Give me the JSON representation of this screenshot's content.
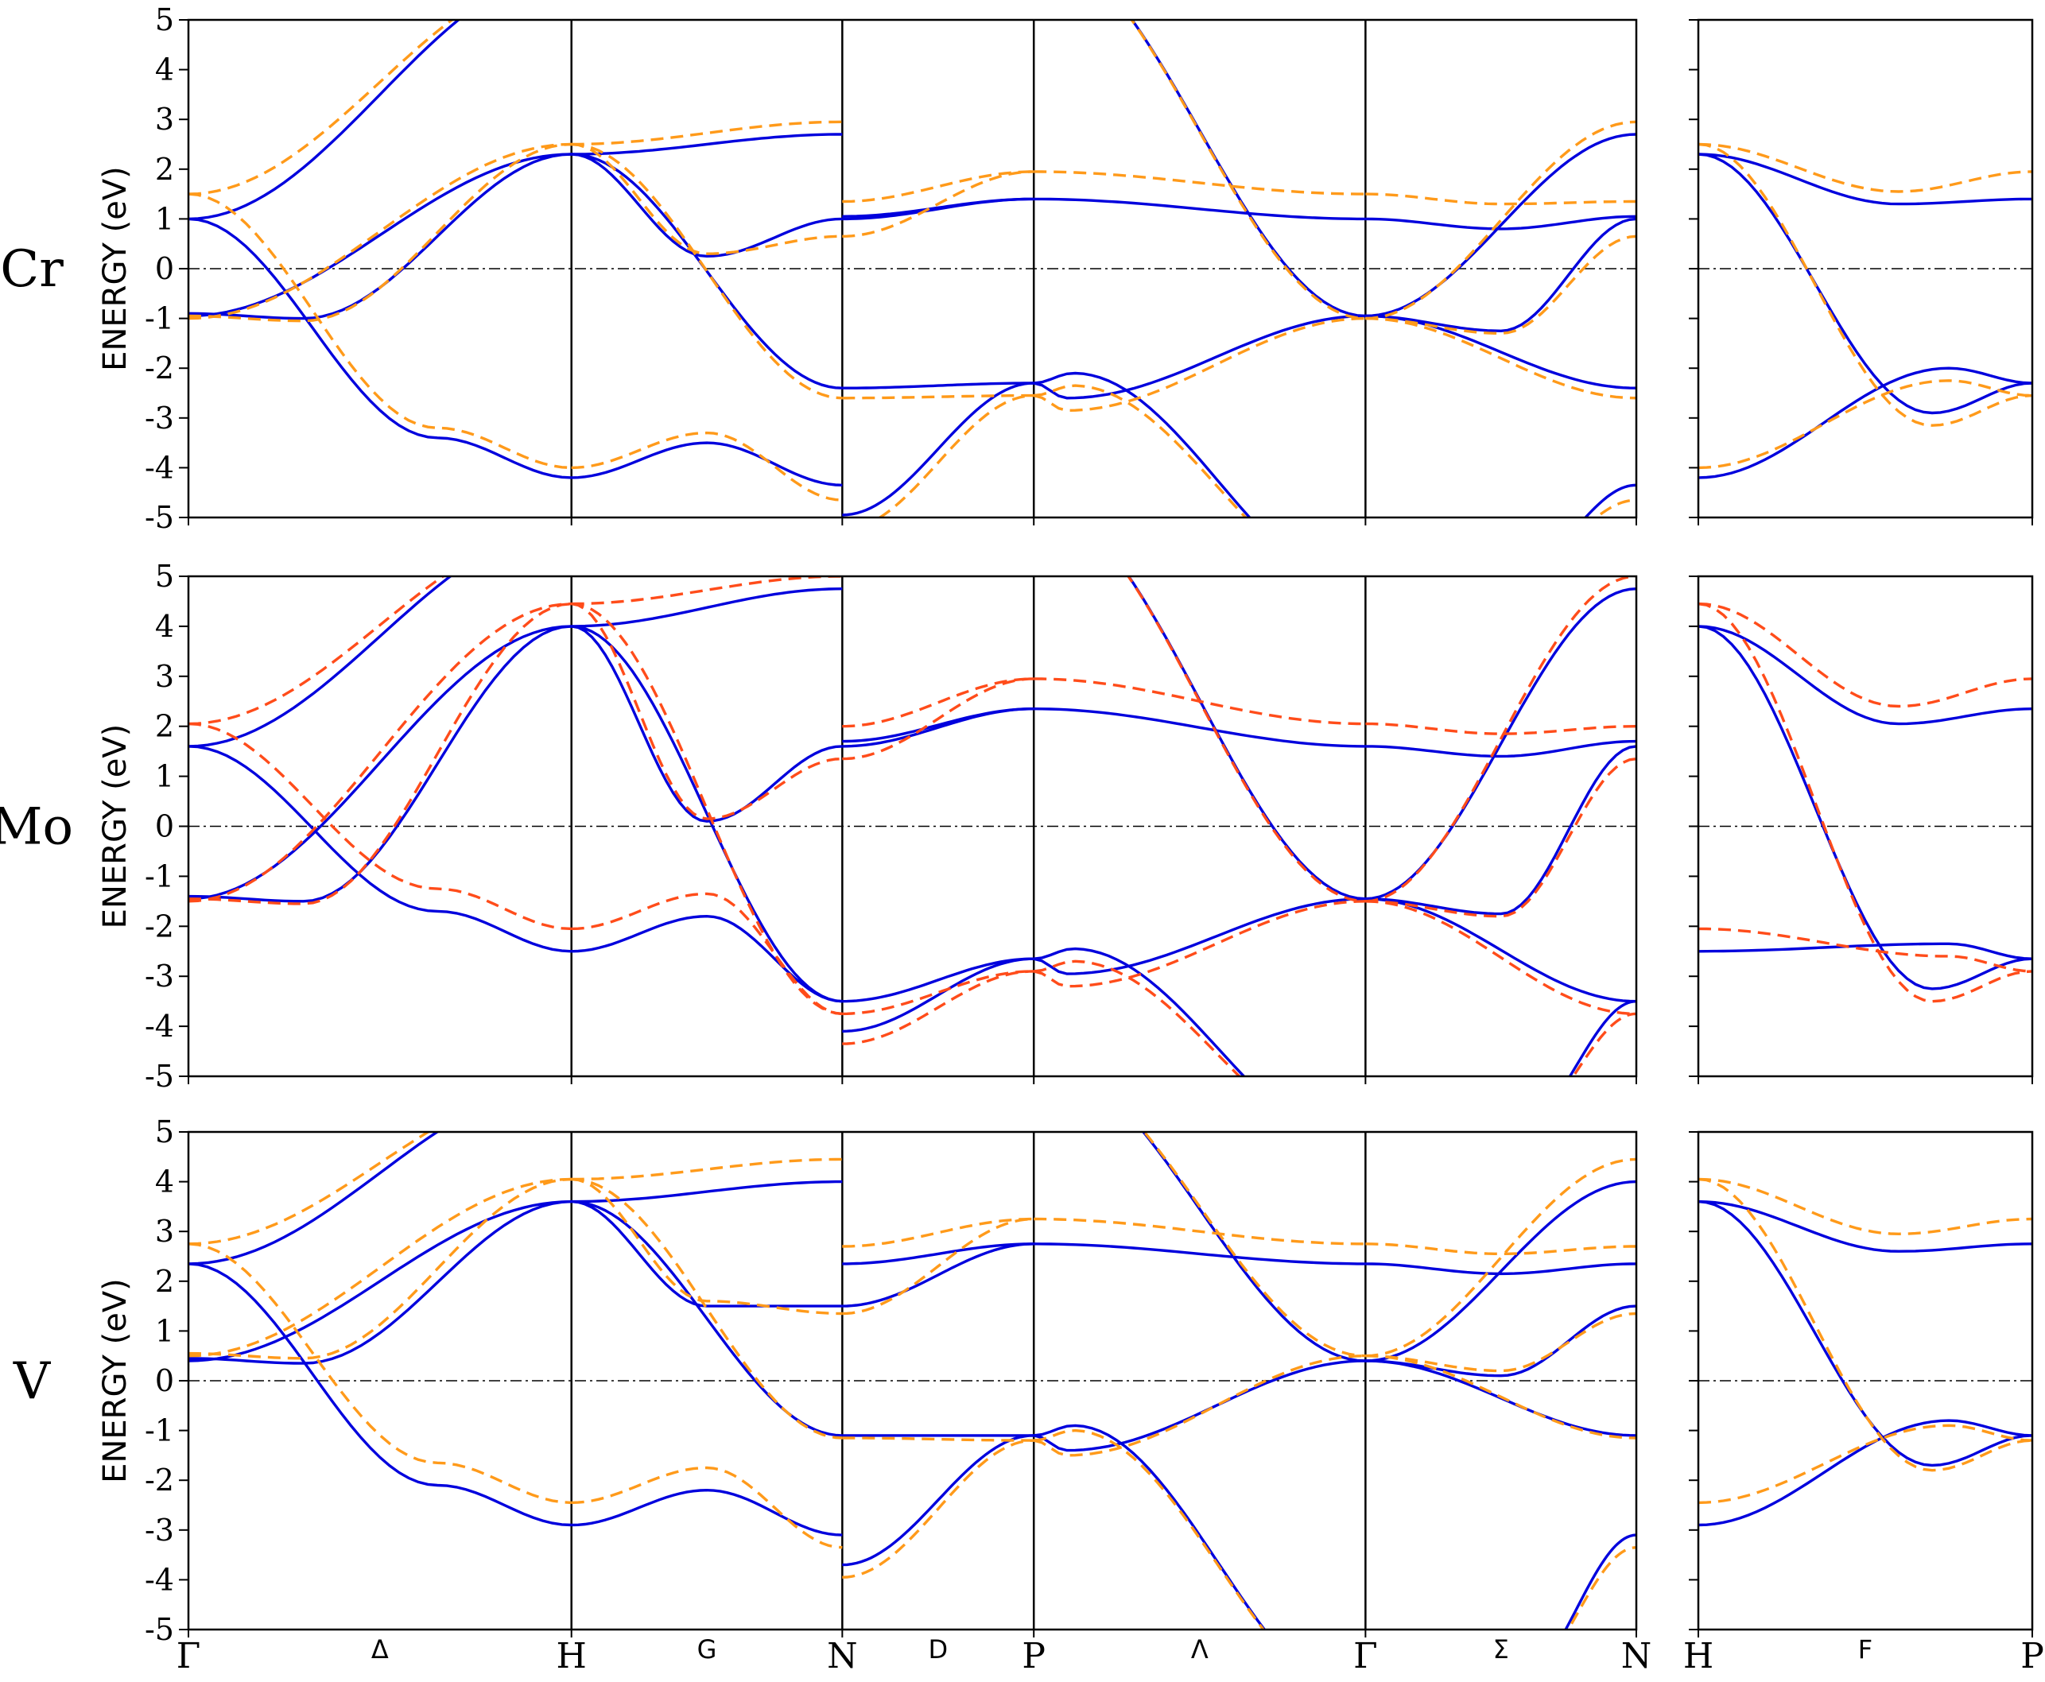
{
  "chart_data": {
    "type": "line",
    "ylabel": "ENERGY  (eV)",
    "ylim": [
      -5,
      5
    ],
    "yticks": [
      5,
      4,
      3,
      2,
      1,
      0,
      -1,
      -2,
      -3,
      -4,
      -5
    ],
    "yticklabels": [
      "5",
      "4",
      "3",
      "2",
      "1",
      "0",
      "-1",
      "-2",
      "-3",
      "-4",
      "-5"
    ],
    "fermi_level": 0,
    "grid": false,
    "main_path": {
      "points": [
        "Γ",
        "H",
        "N",
        "P",
        "Γ",
        "N"
      ],
      "x": [
        0,
        1,
        1.7071,
        2.2071,
        3.0731,
        3.7802
      ],
      "segment_labels": [
        {
          "label": "Δ",
          "x": 0.5
        },
        {
          "label": "G",
          "x": 1.3536
        },
        {
          "label": "D",
          "x": 1.9571
        },
        {
          "label": "Λ",
          "x": 2.6401
        },
        {
          "label": "Σ",
          "x": 3.4267
        }
      ]
    },
    "side_path": {
      "points": [
        "H",
        "P"
      ],
      "x": [
        0,
        0.866
      ],
      "segment_labels": [
        {
          "label": "F",
          "x": 0.433
        }
      ]
    },
    "series_styles": [
      {
        "id": "solid",
        "color": "#0000dd",
        "dash": "none"
      },
      {
        "id": "dashed",
        "color": "varies",
        "dash": "dashed"
      }
    ],
    "panels": [
      {
        "label": "Cr",
        "dashed_color": "#ff9a1a",
        "solid": {
          "gamma": [
            -0.95,
            1.0,
            1.0,
            1.0
          ],
          "H": 2.3,
          "N": [
            -4.35,
            -2.4,
            1.0,
            1.05,
            2.7
          ],
          "P": [
            -2.3,
            -2.3,
            -2.3,
            1.4,
            1.4,
            1.4
          ],
          "G_min": 0.25,
          "F_min": 1.3
        },
        "dashed": {
          "gamma": [
            -1.0,
            1.5,
            1.5,
            1.5
          ],
          "H": 2.5,
          "N": [
            -4.65,
            -2.6,
            0.65,
            1.35,
            2.95
          ],
          "P": [
            -2.55,
            -2.55,
            -2.55,
            1.95,
            1.95,
            1.95
          ],
          "G_min": 0.3,
          "F_min": 1.55
        }
      },
      {
        "label": "Mo",
        "dashed_color": "#ff4c1a",
        "solid": {
          "gamma": [
            -1.45,
            1.6,
            1.6,
            1.6
          ],
          "H": 4.0,
          "N": [
            -3.5,
            -3.5,
            1.6,
            1.7,
            4.75
          ],
          "P": [
            -2.65,
            -2.65,
            -2.65,
            2.35,
            2.35,
            2.35
          ],
          "G_min": 0.1,
          "F_min": 2.05
        },
        "dashed": {
          "gamma": [
            -1.5,
            2.05,
            2.05,
            2.05
          ],
          "H": 4.45,
          "N": [
            -3.75,
            -3.75,
            1.35,
            2.0,
            5.0
          ],
          "P": [
            -2.9,
            -2.9,
            -2.9,
            2.95,
            2.95,
            2.95
          ],
          "G_min": 0.15,
          "F_min": 2.4
        }
      },
      {
        "label": "V",
        "dashed_color": "#ff9a1a",
        "solid": {
          "gamma": [
            0.4,
            2.35,
            2.35,
            2.35
          ],
          "H": 3.6,
          "N": [
            -3.1,
            -1.1,
            1.5,
            2.35,
            4.0
          ],
          "P": [
            -1.1,
            -1.1,
            -1.1,
            2.75,
            2.75,
            2.75
          ],
          "G_min": 1.5,
          "F_min": 2.6
        },
        "dashed": {
          "gamma": [
            0.5,
            2.75,
            2.75,
            2.75
          ],
          "H": 4.05,
          "N": [
            -3.35,
            -1.15,
            1.35,
            2.7,
            4.45
          ],
          "P": [
            -1.2,
            -1.2,
            -1.2,
            3.25,
            3.25,
            3.25
          ],
          "G_min": 1.6,
          "F_min": 2.95
        }
      }
    ]
  }
}
